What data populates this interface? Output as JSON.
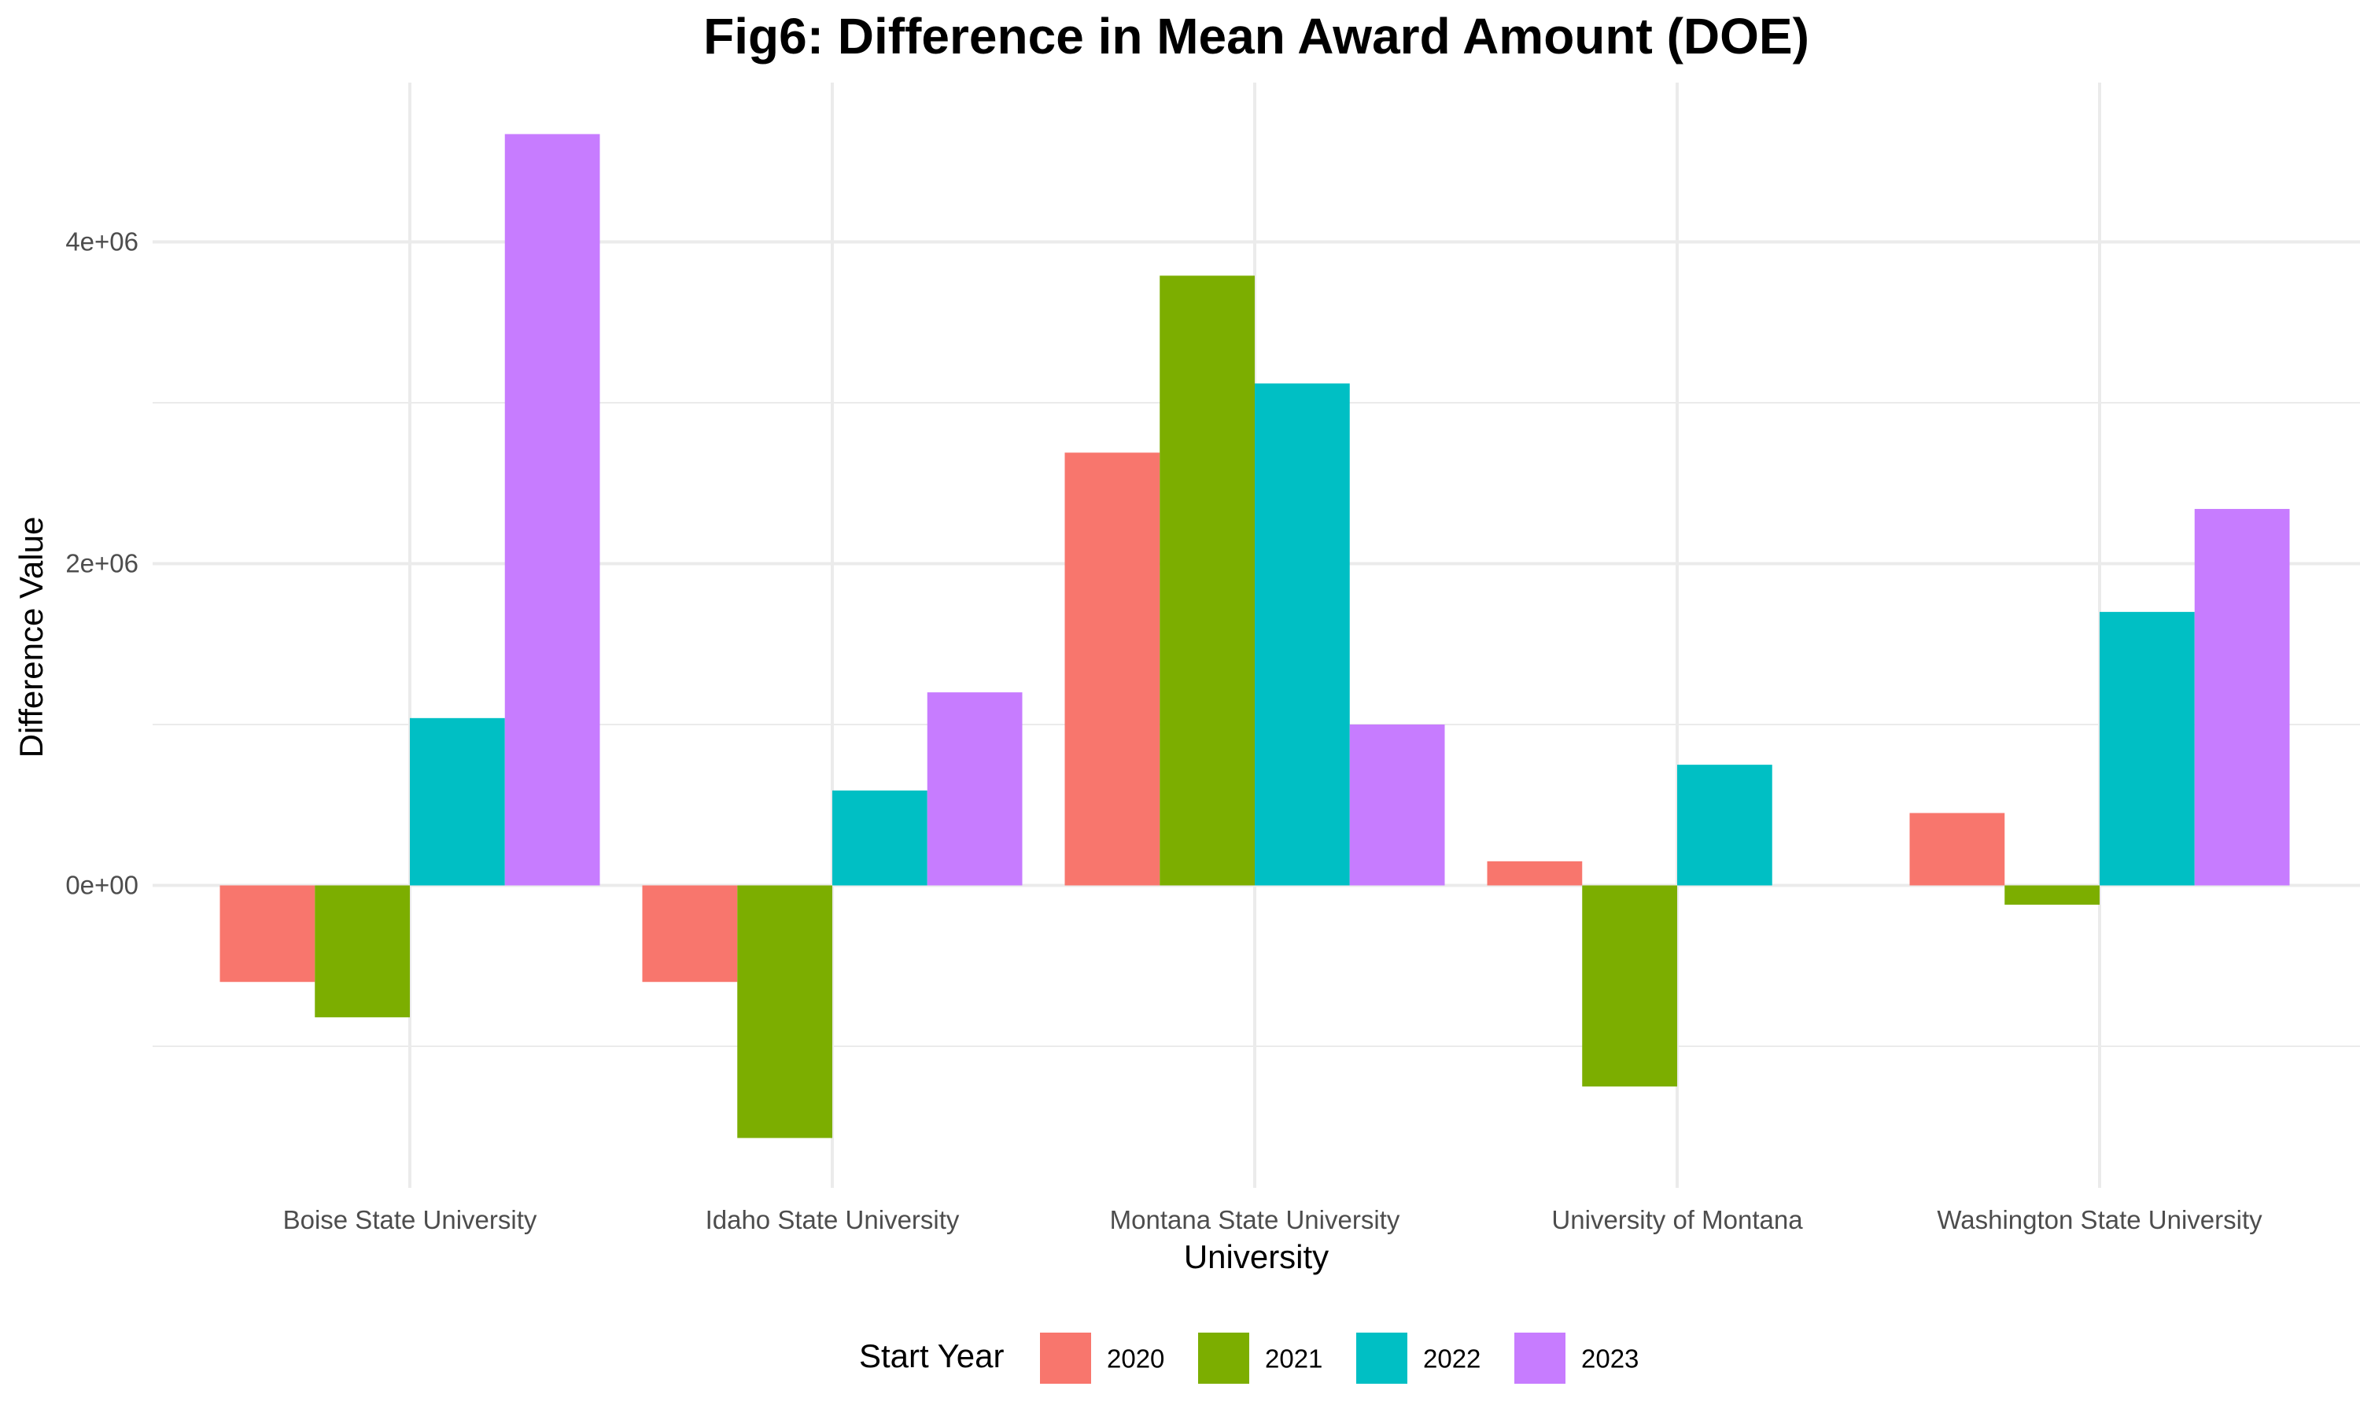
{
  "chart_data": {
    "type": "bar",
    "title": "Fig6: Difference in Mean Award Amount (DOE)",
    "xlabel": "University",
    "ylabel": "Difference Value",
    "categories": [
      "Boise State University",
      "Idaho State University",
      "Montana State University",
      "University of Montana",
      "Washington State University"
    ],
    "series": [
      {
        "name": "2020",
        "color": "#F8766D",
        "values": [
          -600000,
          -600000,
          2690000,
          150000,
          450000
        ]
      },
      {
        "name": "2021",
        "color": "#7CAE00",
        "values": [
          -820000,
          -1570000,
          3790000,
          -1250000,
          -120000
        ]
      },
      {
        "name": "2022",
        "color": "#00BFC4",
        "values": [
          1040000,
          590000,
          3120000,
          750000,
          1700000
        ]
      },
      {
        "name": "2023",
        "color": "#C77CFF",
        "values": [
          4670000,
          1200000,
          1000000,
          null,
          2340000
        ]
      }
    ],
    "ylim": [
      -1880000,
      4990000
    ],
    "yticks": [
      0,
      2000000,
      4000000
    ],
    "ytick_labels": [
      "0e+00",
      "2e+06",
      "4e+06"
    ],
    "y_minor_ticks": [
      -1000000,
      1000000,
      3000000
    ],
    "grid": true,
    "legend": {
      "title": "Start Year",
      "position": "bottom"
    }
  }
}
